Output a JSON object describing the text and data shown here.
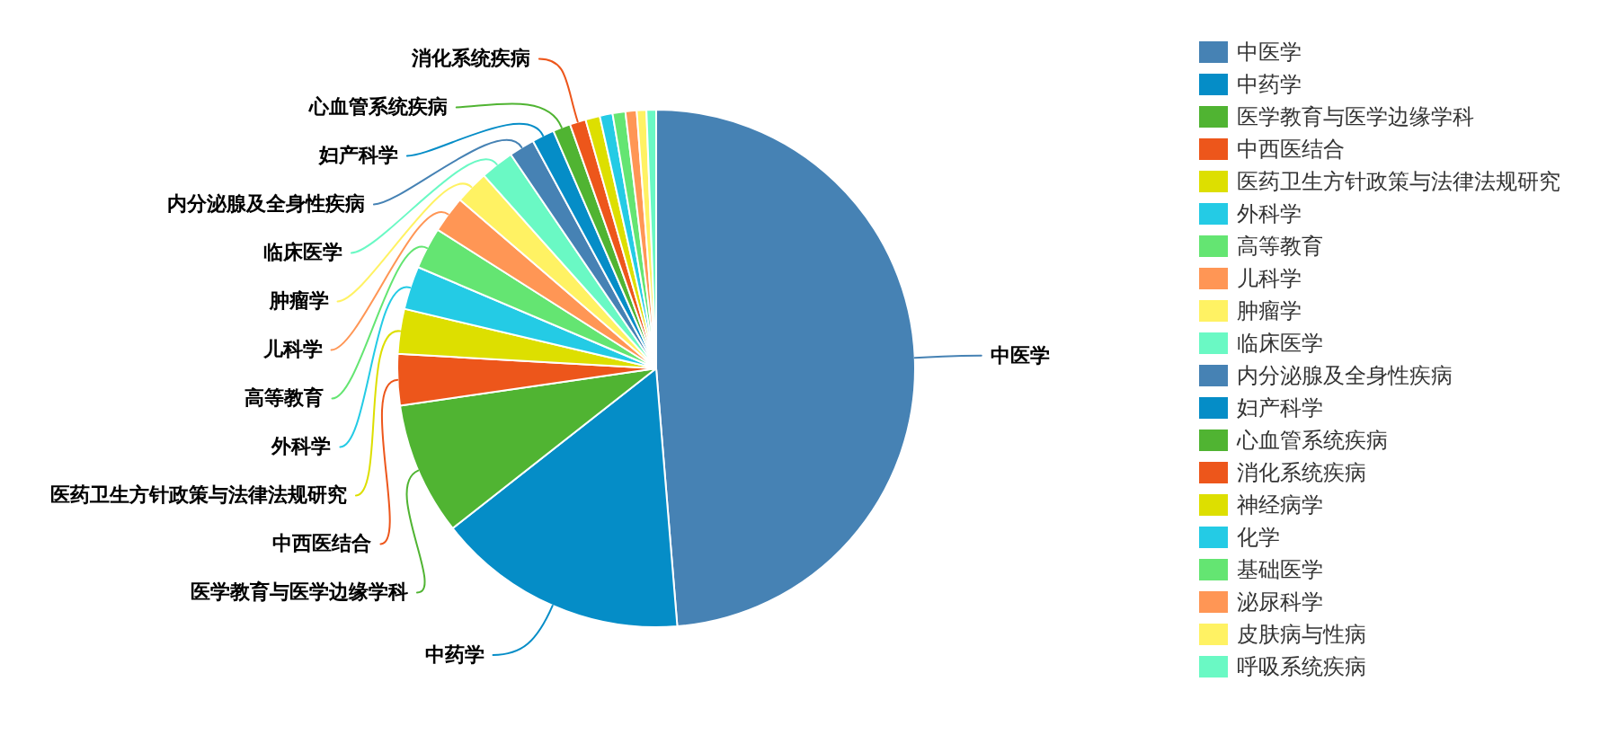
{
  "chart_data": {
    "type": "pie",
    "categories": [
      "中医学",
      "中药学",
      "医学教育与医学边缘学科",
      "中西医结合",
      "医药卫生方针政策与法律法规研究",
      "外科学",
      "高等教育",
      "儿科学",
      "肿瘤学",
      "临床医学",
      "内分泌腺及全身性疾病",
      "妇产科学",
      "心血管系统疾病",
      "消化系统疾病",
      "神经病学",
      "化学",
      "基础医学",
      "泌尿科学",
      "皮肤病与性病",
      "呼吸系统疾病"
    ],
    "values": [
      48.7,
      15.7,
      8.3,
      3.2,
      2.8,
      2.7,
      2.6,
      2.3,
      2.1,
      2.1,
      1.6,
      1.4,
      1.1,
      1.0,
      0.9,
      0.8,
      0.8,
      0.7,
      0.6,
      0.6
    ],
    "colors": [
      "#4682b4",
      "#058dc7",
      "#50b432",
      "#ed561b",
      "#dddf00",
      "#24cbe5",
      "#64e572",
      "#ff9655",
      "#fff263",
      "#6af9c4",
      "#4682b4",
      "#058dc7",
      "#50b432",
      "#ed561b",
      "#dddf00",
      "#24cbe5",
      "#64e572",
      "#ff9655",
      "#fff263",
      "#6af9c4"
    ],
    "legend": "right"
  }
}
